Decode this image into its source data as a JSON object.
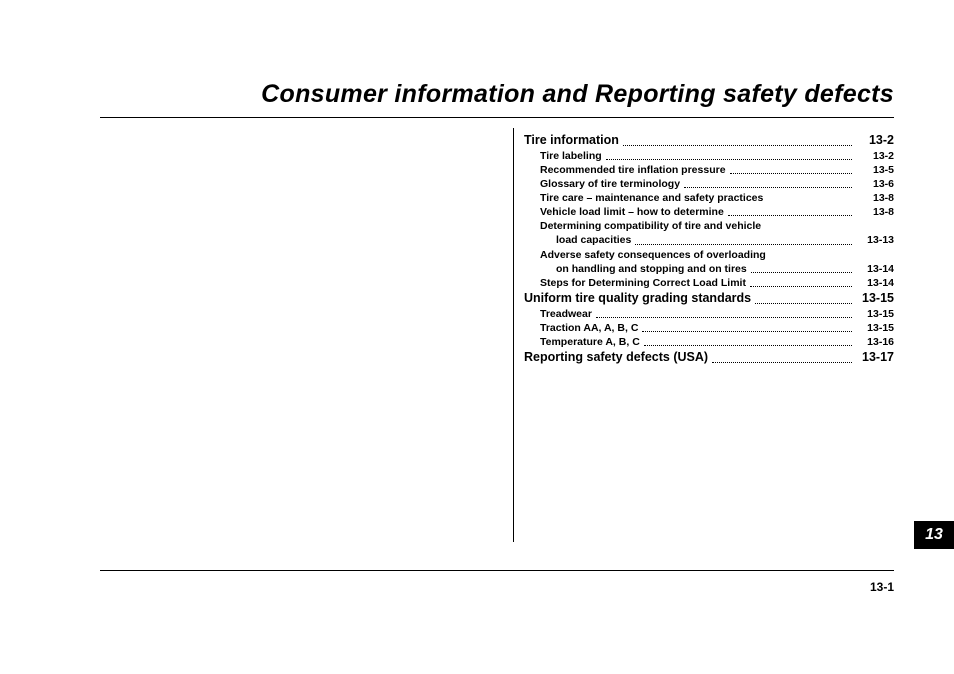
{
  "title": "Consumer information and Reporting safety defects",
  "chapter_badge": "13",
  "page_number": "13-1",
  "toc": [
    {
      "type": "section",
      "label": "Tire information",
      "page": "13-2",
      "dots": true
    },
    {
      "type": "item",
      "label": "Tire labeling",
      "page": "13-2",
      "dots": true
    },
    {
      "type": "item",
      "label": "Recommended tire inflation pressure",
      "page": "13-5",
      "dots": true
    },
    {
      "type": "item",
      "label": "Glossary of tire terminology",
      "page": "13-6",
      "dots": true
    },
    {
      "type": "item",
      "label": "Tire care – maintenance and safety practices",
      "page": "13-8",
      "dots": false
    },
    {
      "type": "item",
      "label": "Vehicle load limit – how to determine",
      "page": "13-8",
      "dots": true
    },
    {
      "type": "item",
      "label": "Determining compatibility of tire and vehicle",
      "page": "",
      "dots": false
    },
    {
      "type": "cont",
      "label": "load capacities",
      "page": "13-13",
      "dots": true
    },
    {
      "type": "item",
      "label": "Adverse safety consequences of overloading",
      "page": "",
      "dots": false
    },
    {
      "type": "cont",
      "label": "on handling and stopping and on tires",
      "page": "13-14",
      "dots": true
    },
    {
      "type": "item",
      "label": "Steps for Determining Correct Load Limit",
      "page": "13-14",
      "dots": true
    },
    {
      "type": "section",
      "label": "Uniform tire quality grading standards",
      "page": "13-15",
      "dots": true
    },
    {
      "type": "item",
      "label": "Treadwear",
      "page": "13-15",
      "dots": true
    },
    {
      "type": "item",
      "label": "Traction AA, A, B, C",
      "page": "13-15",
      "dots": true
    },
    {
      "type": "item",
      "label": "Temperature A, B, C",
      "page": "13-16",
      "dots": true
    },
    {
      "type": "section",
      "label": "Reporting safety defects (USA)",
      "page": "13-17",
      "dots": true
    }
  ]
}
